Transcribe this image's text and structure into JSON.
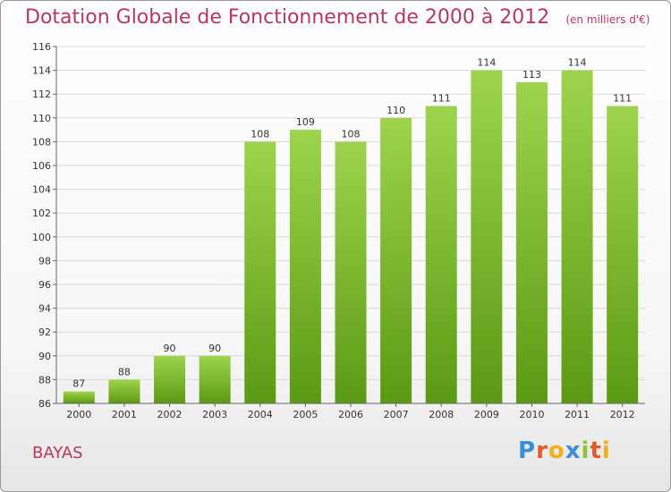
{
  "title": "Dotation Globale de Fonctionnement de 2000 à 2012",
  "unit": "(en milliers d'€)",
  "place": "BAYAS",
  "logo": {
    "letters": [
      "P",
      "r",
      "o",
      "x",
      "i",
      "t",
      "i"
    ],
    "colors": [
      "#3b8fd6",
      "#e05a2a",
      "#f2b01e",
      "#3b8fd6",
      "#8cc63f",
      "#e05a2a",
      "#f2b01e"
    ]
  },
  "colors": {
    "bar_top": "#9ed44d",
    "bar_bottom": "#5a9a12",
    "accent": "#b7385a"
  },
  "chart_data": {
    "type": "bar",
    "categories": [
      "2000",
      "2001",
      "2002",
      "2003",
      "2004",
      "2005",
      "2006",
      "2007",
      "2008",
      "2009",
      "2010",
      "2011",
      "2012"
    ],
    "values": [
      87,
      88,
      90,
      90,
      108,
      109,
      108,
      110,
      111,
      114,
      113,
      114,
      111
    ],
    "title": "Dotation Globale de Fonctionnement de 2000 à 2012",
    "xlabel": "",
    "ylabel": "",
    "ylim": [
      86,
      116
    ],
    "yticks": [
      86,
      88,
      90,
      92,
      94,
      96,
      98,
      100,
      102,
      104,
      106,
      108,
      110,
      112,
      114,
      116
    ],
    "grid": true,
    "legend": "none"
  }
}
